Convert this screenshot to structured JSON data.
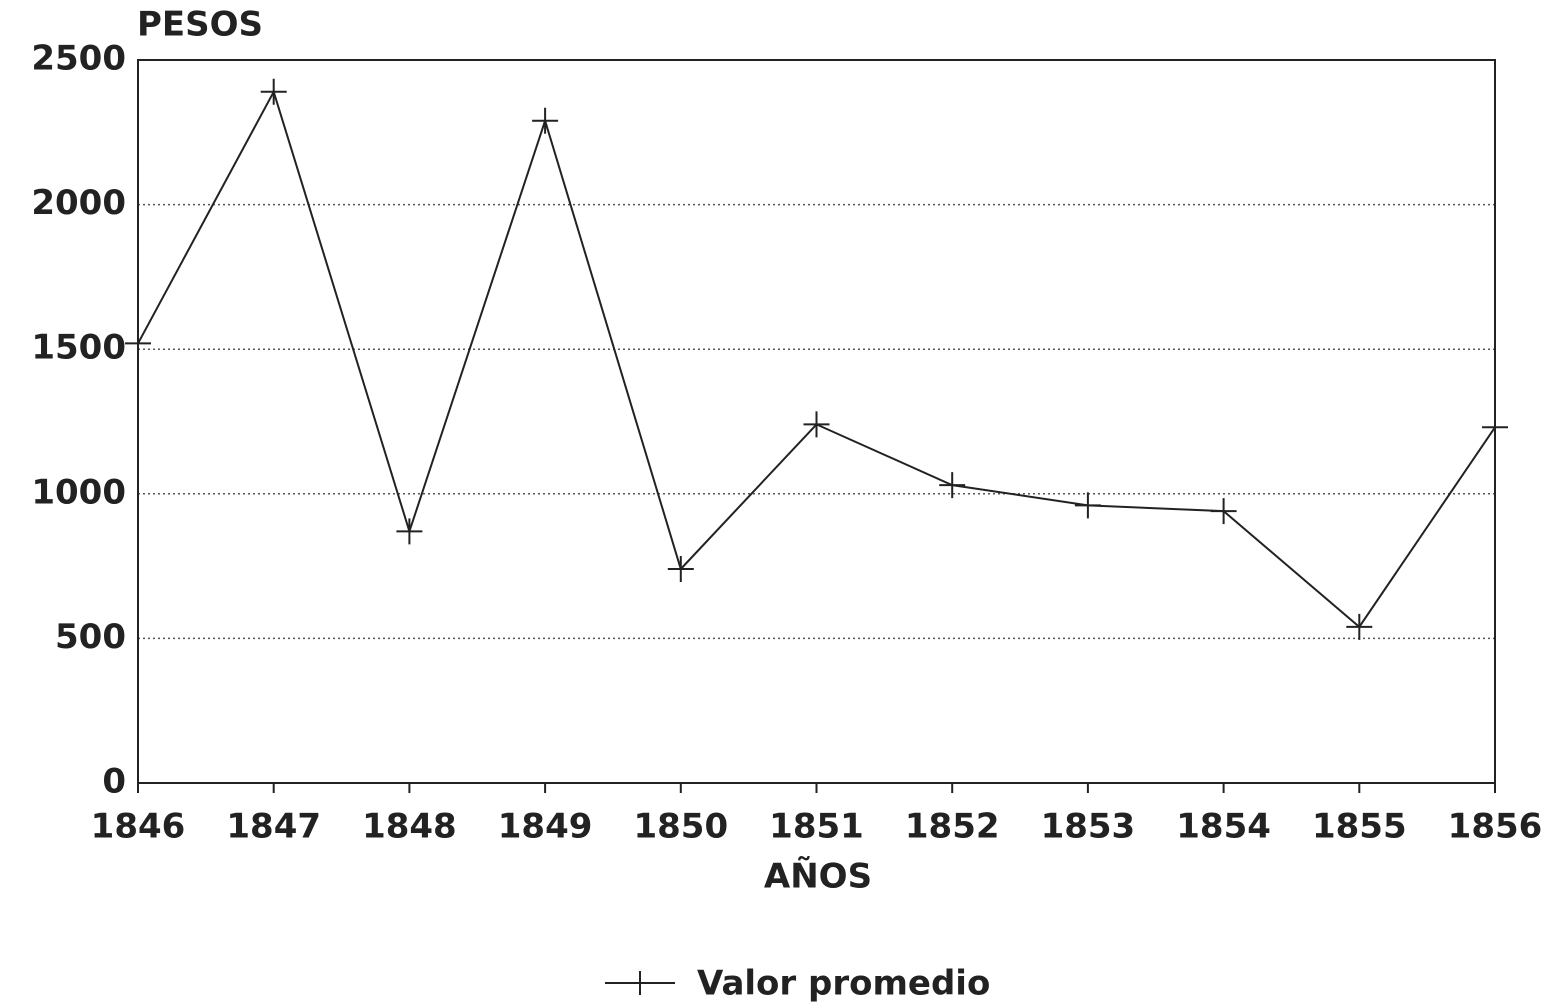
{
  "chart_data": {
    "type": "line",
    "x_label": "AÑOS",
    "y_label": "PESOS",
    "x": [
      1846,
      1847,
      1848,
      1849,
      1850,
      1851,
      1852,
      1853,
      1854,
      1855,
      1856
    ],
    "series": [
      {
        "name": "Valor promedio",
        "color": "#222222",
        "values": [
          1520,
          2390,
          870,
          2290,
          740,
          1240,
          1030,
          960,
          940,
          540,
          1230
        ]
      }
    ],
    "xlim": [
      1846,
      1856
    ],
    "xticks": [
      1846,
      1847,
      1848,
      1849,
      1850,
      1851,
      1852,
      1853,
      1854,
      1855,
      1856
    ],
    "ylim": [
      0,
      2500
    ],
    "yticks": [
      0,
      500,
      1000,
      1500,
      2000,
      2500
    ],
    "grid": true,
    "legend": "bottom"
  }
}
